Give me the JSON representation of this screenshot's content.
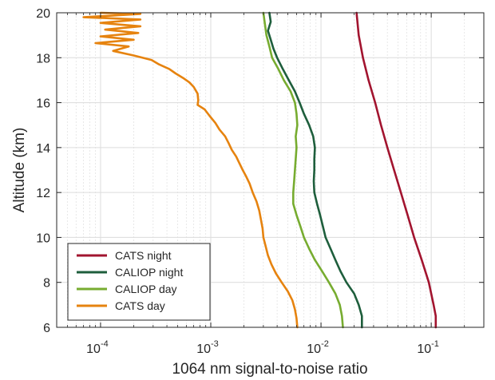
{
  "chart_data": {
    "type": "line",
    "xlabel": "1064 nm  signal-to-noise ratio",
    "ylabel": "Altitude (km)",
    "x_scale": "log",
    "xlim": [
      4e-05,
      0.3
    ],
    "ylim": [
      6,
      20
    ],
    "x_ticks": [
      {
        "value": 0.0001,
        "base": "10",
        "exp": "-4"
      },
      {
        "value": 0.001,
        "base": "10",
        "exp": "-3"
      },
      {
        "value": 0.01,
        "base": "10",
        "exp": "-2"
      },
      {
        "value": 0.1,
        "base": "10",
        "exp": "-1"
      }
    ],
    "y_ticks": [
      "6",
      "8",
      "10",
      "12",
      "14",
      "16",
      "18",
      "20"
    ],
    "grid": true,
    "legend_position": "bottom-left",
    "series": [
      {
        "name": "CATS night",
        "color": "#a2142f",
        "points": [
          [
            0.021,
            20
          ],
          [
            0.022,
            19
          ],
          [
            0.024,
            18
          ],
          [
            0.027,
            17
          ],
          [
            0.031,
            16
          ],
          [
            0.035,
            15
          ],
          [
            0.04,
            14
          ],
          [
            0.046,
            13
          ],
          [
            0.053,
            12
          ],
          [
            0.061,
            11
          ],
          [
            0.07,
            10
          ],
          [
            0.082,
            9
          ],
          [
            0.095,
            8
          ],
          [
            0.105,
            7
          ],
          [
            0.11,
            6.5
          ],
          [
            0.11,
            6
          ]
        ]
      },
      {
        "name": "CALIOP night",
        "color": "#1e5e3c",
        "points": [
          [
            0.0034,
            20
          ],
          [
            0.0035,
            19.6
          ],
          [
            0.0033,
            19.2
          ],
          [
            0.0035,
            18.8
          ],
          [
            0.0037,
            18.4
          ],
          [
            0.004,
            18
          ],
          [
            0.0045,
            17.5
          ],
          [
            0.0051,
            17
          ],
          [
            0.0058,
            16.5
          ],
          [
            0.0064,
            16
          ],
          [
            0.007,
            15.5
          ],
          [
            0.0078,
            15
          ],
          [
            0.0085,
            14.5
          ],
          [
            0.0088,
            14
          ],
          [
            0.0087,
            13.5
          ],
          [
            0.0087,
            13
          ],
          [
            0.0086,
            12.5
          ],
          [
            0.0087,
            12
          ],
          [
            0.0092,
            11.5
          ],
          [
            0.0098,
            11
          ],
          [
            0.0104,
            10.5
          ],
          [
            0.011,
            10
          ],
          [
            0.0122,
            9.5
          ],
          [
            0.0135,
            9
          ],
          [
            0.015,
            8.5
          ],
          [
            0.017,
            8
          ],
          [
            0.02,
            7.5
          ],
          [
            0.022,
            7
          ],
          [
            0.0235,
            6.5
          ],
          [
            0.0235,
            6
          ]
        ]
      },
      {
        "name": "CALIOP day",
        "color": "#77ac30",
        "points": [
          [
            0.003,
            20
          ],
          [
            0.0031,
            19.5
          ],
          [
            0.0032,
            19
          ],
          [
            0.0034,
            18.5
          ],
          [
            0.0036,
            18
          ],
          [
            0.0041,
            17.5
          ],
          [
            0.0046,
            17
          ],
          [
            0.0053,
            16.5
          ],
          [
            0.0058,
            16
          ],
          [
            0.006,
            15.5
          ],
          [
            0.0061,
            15
          ],
          [
            0.0059,
            14.5
          ],
          [
            0.006,
            14
          ],
          [
            0.0059,
            13.5
          ],
          [
            0.0058,
            13
          ],
          [
            0.0057,
            12.5
          ],
          [
            0.0056,
            12
          ],
          [
            0.0056,
            11.5
          ],
          [
            0.006,
            11
          ],
          [
            0.0065,
            10.5
          ],
          [
            0.007,
            10
          ],
          [
            0.0078,
            9.5
          ],
          [
            0.0088,
            9
          ],
          [
            0.0102,
            8.5
          ],
          [
            0.0118,
            8
          ],
          [
            0.0135,
            7.5
          ],
          [
            0.0148,
            7
          ],
          [
            0.0155,
            6.5
          ],
          [
            0.0158,
            6
          ]
        ]
      },
      {
        "name": "CATS day",
        "color": "#e6830f",
        "points": [
          [
            0.0001,
            20
          ],
          [
            0.00023,
            19.95
          ],
          [
            7e-05,
            19.8
          ],
          [
            0.00023,
            19.7
          ],
          [
            0.0001,
            19.55
          ],
          [
            0.00023,
            19.4
          ],
          [
            0.00011,
            19.25
          ],
          [
            0.00022,
            19.1
          ],
          [
            0.0001,
            18.95
          ],
          [
            0.0002,
            18.8
          ],
          [
            9e-05,
            18.65
          ],
          [
            0.00018,
            18.5
          ],
          [
            0.00013,
            18.3
          ],
          [
            0.0002,
            18.1
          ],
          [
            0.00029,
            17.9
          ],
          [
            0.00034,
            17.7
          ],
          [
            0.00042,
            17.5
          ],
          [
            0.00048,
            17.3
          ],
          [
            0.00056,
            17.1
          ],
          [
            0.00064,
            16.9
          ],
          [
            0.0007,
            16.7
          ],
          [
            0.00076,
            16.4
          ],
          [
            0.00077,
            16.1
          ],
          [
            0.00076,
            15.9
          ],
          [
            0.00088,
            15.7
          ],
          [
            0.00098,
            15.4
          ],
          [
            0.0011,
            15.1
          ],
          [
            0.0012,
            14.8
          ],
          [
            0.00135,
            14.5
          ],
          [
            0.00145,
            14.2
          ],
          [
            0.00155,
            13.9
          ],
          [
            0.0017,
            13.6
          ],
          [
            0.00182,
            13.3
          ],
          [
            0.00195,
            13.0
          ],
          [
            0.0021,
            12.7
          ],
          [
            0.00225,
            12.4
          ],
          [
            0.0024,
            12.0
          ],
          [
            0.0026,
            11.6
          ],
          [
            0.00275,
            11.2
          ],
          [
            0.00285,
            10.8
          ],
          [
            0.00295,
            10.4
          ],
          [
            0.003,
            10.0
          ],
          [
            0.00315,
            9.6
          ],
          [
            0.0033,
            9.2
          ],
          [
            0.00355,
            8.8
          ],
          [
            0.0039,
            8.4
          ],
          [
            0.0044,
            8.0
          ],
          [
            0.005,
            7.6
          ],
          [
            0.0055,
            7.2
          ],
          [
            0.0058,
            6.8
          ],
          [
            0.006,
            6.4
          ],
          [
            0.0061,
            6.0
          ]
        ]
      }
    ]
  }
}
